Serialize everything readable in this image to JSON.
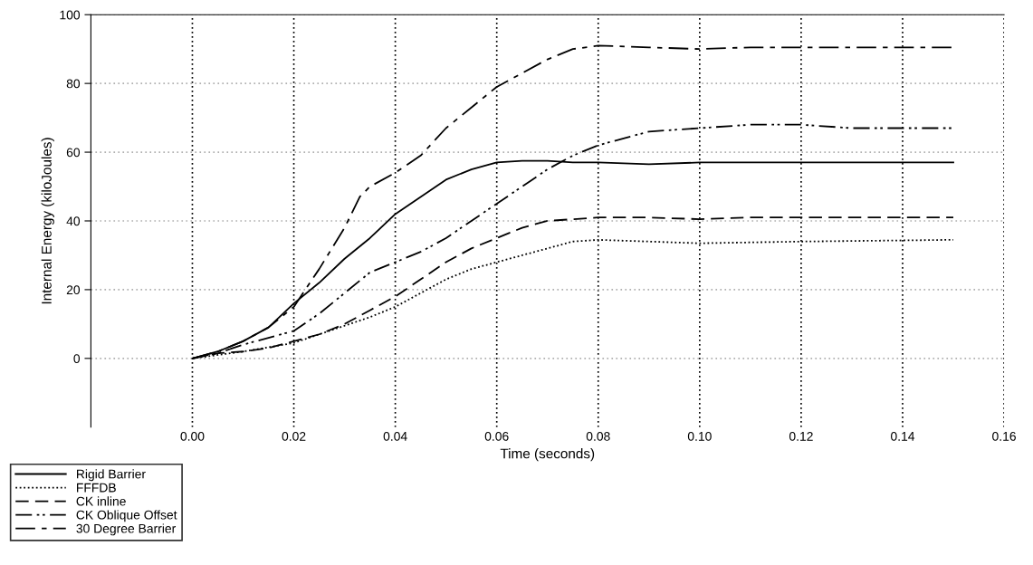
{
  "chart_data": {
    "type": "line",
    "xlabel": "Time (seconds)",
    "ylabel": "Internal Energy (kiloJoules)",
    "xlim": [
      -0.02,
      0.16
    ],
    "xticks": [
      {
        "value": 0,
        "label": "0.00"
      },
      {
        "value": 0.02,
        "label": "0.02"
      },
      {
        "value": 0.04,
        "label": "0.04"
      },
      {
        "value": 0.06,
        "label": "0.06"
      },
      {
        "value": 0.08,
        "label": "0.08"
      },
      {
        "value": 0.1,
        "label": "0.10"
      },
      {
        "value": 0.12,
        "label": "0.12"
      },
      {
        "value": 0.14,
        "label": "0.14"
      },
      {
        "value": 0.16,
        "label": "0.16"
      }
    ],
    "ylim": [
      -20,
      100
    ],
    "yticks": [
      0,
      20,
      40,
      60,
      80,
      100
    ],
    "grid": true,
    "legend": "bottom left",
    "marker": "none",
    "series": [
      {
        "name": "Rigid Barrier",
        "color": "#000000",
        "line_style": "solid",
        "x": [
          0,
          0.005,
          0.01,
          0.015,
          0.02,
          0.025,
          0.03,
          0.035,
          0.04,
          0.045,
          0.05,
          0.055,
          0.06,
          0.065,
          0.07,
          0.075,
          0.08,
          0.09,
          0.1,
          0.11,
          0.12,
          0.13,
          0.14,
          0.15
        ],
        "values": [
          0,
          2,
          5,
          9,
          16,
          22,
          29,
          35,
          42,
          47,
          52,
          55,
          57,
          57.5,
          57.5,
          57,
          57,
          56.5,
          57,
          57,
          57,
          57,
          57,
          57
        ]
      },
      {
        "name": "FFFDB",
        "color": "#000000",
        "line_style": "dotted",
        "x": [
          0,
          0.01,
          0.02,
          0.025,
          0.03,
          0.035,
          0.04,
          0.045,
          0.05,
          0.055,
          0.06,
          0.065,
          0.07,
          0.075,
          0.08,
          0.09,
          0.1,
          0.12,
          0.15
        ],
        "values": [
          0,
          2,
          4.5,
          7,
          9.5,
          12,
          15,
          19,
          23,
          26,
          28,
          30,
          32,
          34,
          34.5,
          34,
          33.5,
          34,
          34.5
        ]
      },
      {
        "name": "CK inline",
        "color": "#000000",
        "line_style": "dashed",
        "x": [
          0,
          0.005,
          0.01,
          0.015,
          0.02,
          0.025,
          0.03,
          0.035,
          0.04,
          0.045,
          0.05,
          0.055,
          0.06,
          0.065,
          0.07,
          0.08,
          0.09,
          0.1,
          0.11,
          0.12,
          0.15
        ],
        "values": [
          0,
          1.5,
          2,
          3,
          5,
          7,
          10,
          14,
          18,
          23,
          28,
          32,
          35,
          38,
          40,
          41,
          41,
          40.5,
          41,
          41,
          41
        ]
      },
      {
        "name": "CK Oblique Offset",
        "color": "#000000",
        "line_style": "dashdotdot",
        "x": [
          0,
          0.005,
          0.01,
          0.015,
          0.02,
          0.025,
          0.03,
          0.035,
          0.04,
          0.045,
          0.05,
          0.055,
          0.06,
          0.065,
          0.07,
          0.075,
          0.08,
          0.085,
          0.09,
          0.1,
          0.11,
          0.12,
          0.13,
          0.14,
          0.15
        ],
        "values": [
          0,
          1.5,
          4,
          6,
          8,
          13,
          19,
          25,
          28,
          31,
          35,
          40,
          45,
          50,
          55,
          59,
          62,
          64,
          66,
          67,
          68,
          68,
          67,
          67,
          67
        ]
      },
      {
        "name": "30 Degree Barrier",
        "color": "#000000",
        "line_style": "dashdot",
        "x": [
          0,
          0.005,
          0.01,
          0.015,
          0.02,
          0.025,
          0.03,
          0.033,
          0.035,
          0.04,
          0.045,
          0.05,
          0.055,
          0.06,
          0.065,
          0.07,
          0.075,
          0.08,
          0.09,
          0.1,
          0.11,
          0.12,
          0.15
        ],
        "values": [
          0,
          2,
          5,
          9,
          15,
          26,
          38,
          47,
          50,
          54,
          59,
          67,
          73,
          79,
          83,
          87,
          90,
          91,
          90.5,
          90,
          90.5,
          90.5,
          90.5
        ]
      }
    ]
  }
}
